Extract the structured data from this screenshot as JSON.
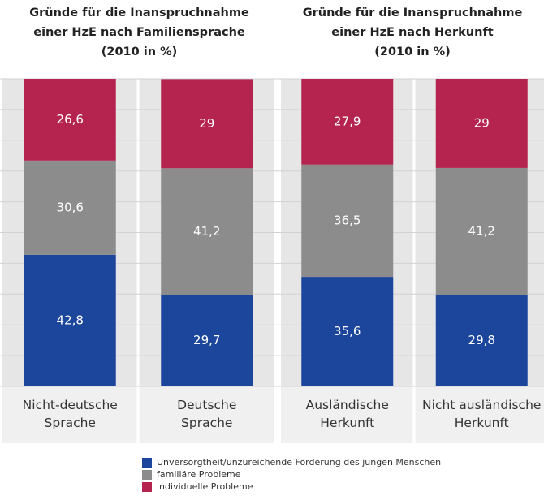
{
  "legend": [
    {
      "name": "Unversorgtheit/unzureichende Förderung des jungen Menschen",
      "color": "#1c459c"
    },
    {
      "name": "familiäre Probleme",
      "color": "#8c8c8c"
    },
    {
      "name": "individuelle Probleme",
      "color": "#b5234f"
    }
  ],
  "chart_data": [
    {
      "type": "stacked_bar",
      "title": "Gründe für die Inanspruchnahme\neiner HzE nach Familiensprache\n(2010 in %)",
      "categories": [
        "Nicht-deutsche\nSprache",
        "Deutsche\nSprache"
      ],
      "series": [
        {
          "values": [
            42.8,
            29.7
          ],
          "value_labels": [
            "42,8",
            "29,7"
          ]
        },
        {
          "values": [
            30.6,
            41.2
          ],
          "value_labels": [
            "30,6",
            "41,2"
          ]
        },
        {
          "values": [
            26.6,
            29
          ],
          "value_labels": [
            "26,6",
            "29"
          ]
        }
      ],
      "ylim": [
        0,
        100
      ],
      "yticks": [
        0,
        10,
        20,
        30,
        40,
        50,
        60,
        70,
        80,
        90,
        100
      ],
      "grid": true
    },
    {
      "type": "stacked_bar",
      "title": "Gründe für die Inanspruchnahme\neiner HzE nach Herkunft\n(2010 in %)",
      "categories": [
        "Ausländische\nHerkunft",
        "Nicht ausländische\nHerkunft"
      ],
      "series": [
        {
          "values": [
            35.6,
            29.8
          ],
          "value_labels": [
            "35,6",
            "29,8"
          ]
        },
        {
          "values": [
            36.5,
            41.2
          ],
          "value_labels": [
            "36,5",
            "41,2"
          ]
        },
        {
          "values": [
            27.9,
            29
          ],
          "value_labels": [
            "27,9",
            "29"
          ]
        }
      ],
      "ylim": [
        0,
        100
      ],
      "yticks": [
        0,
        10,
        20,
        30,
        40,
        50,
        60,
        70,
        80,
        90,
        100
      ],
      "grid": true
    }
  ]
}
